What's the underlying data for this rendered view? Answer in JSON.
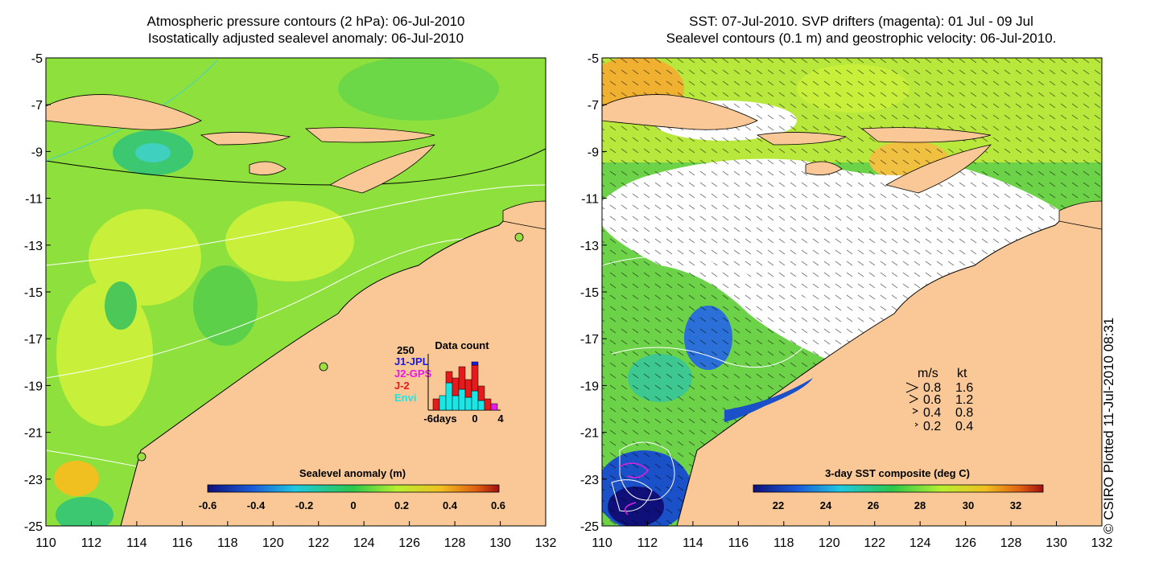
{
  "left_panel": {
    "title_line1": "Atmospheric pressure contours (2 hPa): 06-Jul-2010",
    "title_line2": "Isostatically adjusted sealevel anomaly: 06-Jul-2010",
    "colorbar": {
      "title": "Sealevel anomaly (m)",
      "tick_labels": [
        "-0.6",
        "-0.4",
        "-0.2",
        "0",
        "0.2",
        "0.4",
        "0.6"
      ]
    },
    "inset": {
      "title": "Data count",
      "y_max_label": "250",
      "legend": [
        {
          "label": "J1-JPL",
          "color": "#1a1ae6"
        },
        {
          "label": "J2-GPS",
          "color": "#e61ae6"
        },
        {
          "label": "J-2",
          "color": "#e61a1a"
        },
        {
          "label": "Envi",
          "color": "#1ae6e6"
        }
      ],
      "x_labels": [
        "-6days",
        "0",
        "4"
      ]
    }
  },
  "right_panel": {
    "title_line1": "SST: 07-Jul-2010. SVP drifters (magenta): 01 Jul - 09 Jul",
    "title_line2": "Sealevel contours (0.1 m) and geostrophic velocity: 06-Jul-2010.",
    "colorbar": {
      "title": "3-day SST composite (deg C)",
      "tick_labels": [
        "22",
        "24",
        "26",
        "28",
        "30",
        "32"
      ]
    },
    "velocity_legend": {
      "header_ms": "m/s",
      "header_kt": "kt",
      "rows": [
        {
          "ms": "0.8",
          "kt": "1.6"
        },
        {
          "ms": "0.6",
          "kt": "1.2"
        },
        {
          "ms": "0.4",
          "kt": "0.8"
        },
        {
          "ms": "0.2",
          "kt": "0.4"
        }
      ]
    }
  },
  "axes": {
    "y_labels": [
      "-5",
      "-7",
      "-9",
      "-11",
      "-13",
      "-15",
      "-17",
      "-19",
      "-21",
      "-23",
      "-25"
    ],
    "x_labels": [
      "110",
      "112",
      "114",
      "116",
      "118",
      "120",
      "122",
      "124",
      "126",
      "128",
      "130",
      "132"
    ]
  },
  "credit": "© CSIRO Plotted 11-Jul-2010 08:31",
  "colors": {
    "land": "#f9c896",
    "sea_green": "#7dd83a",
    "sea_yellow": "#c8f03a",
    "cloud": "#ffffff"
  }
}
